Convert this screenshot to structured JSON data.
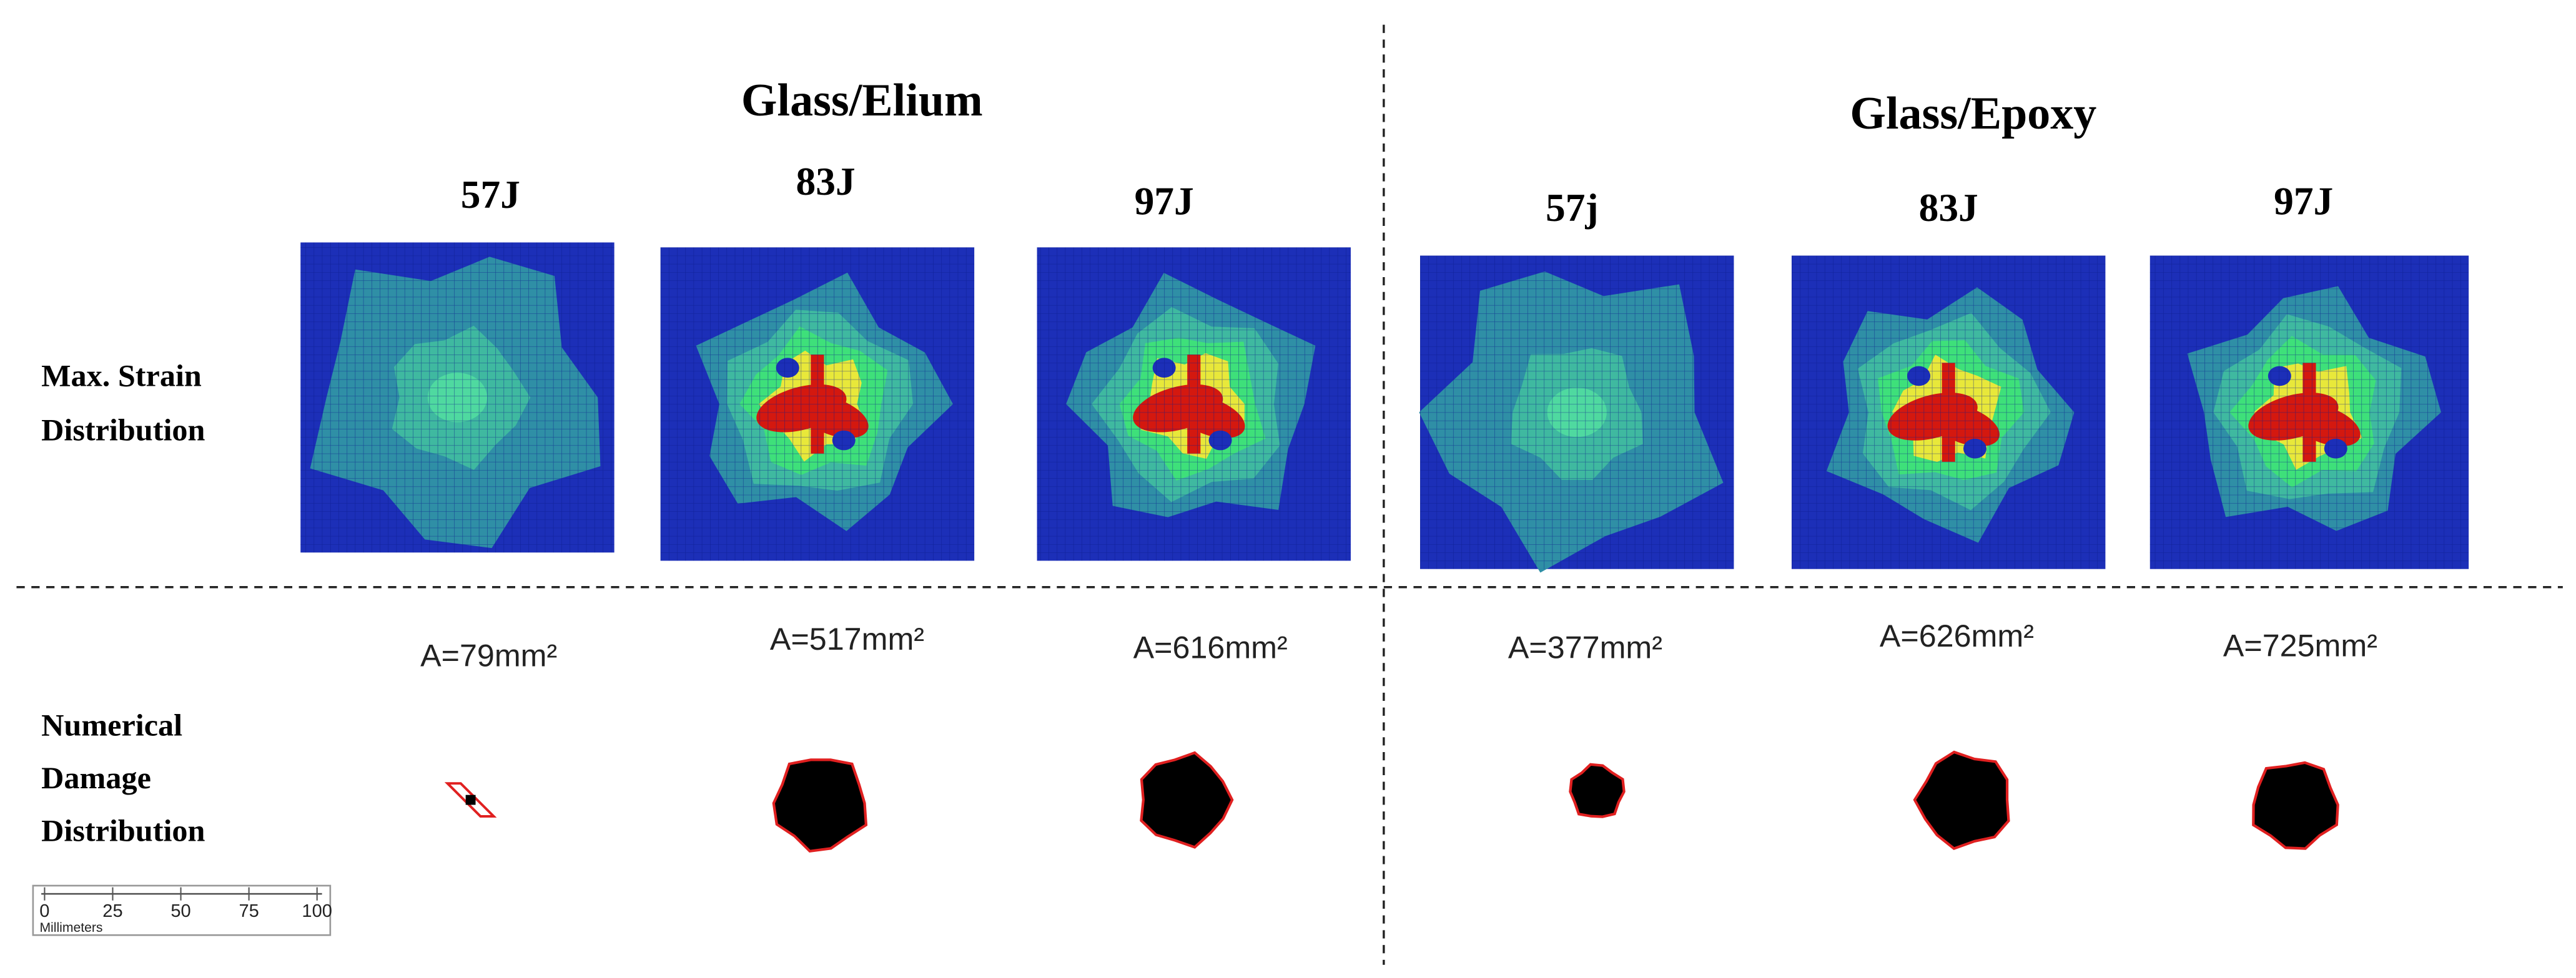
{
  "groups": [
    {
      "title": "Glass/Elium",
      "cases": [
        {
          "energy": "57J",
          "area": "A=79mm²"
        },
        {
          "energy": "83J",
          "area": "A=517mm²"
        },
        {
          "energy": "97J",
          "area": "A=616mm²"
        }
      ]
    },
    {
      "title": "Glass/Epoxy",
      "cases": [
        {
          "energy": "57j",
          "area": "A=377mm²"
        },
        {
          "energy": "83J",
          "area": "A=626mm²"
        },
        {
          "energy": "97J",
          "area": "A=725mm²"
        }
      ]
    }
  ],
  "row_labels": {
    "strain": [
      "Max. Strain",
      "Distribution"
    ],
    "damage": [
      "Numerical",
      "Damage",
      "Distribution"
    ]
  },
  "scale_bar": {
    "ticks": [
      0,
      25,
      50,
      75,
      100
    ],
    "unit": "Millimeters"
  }
}
